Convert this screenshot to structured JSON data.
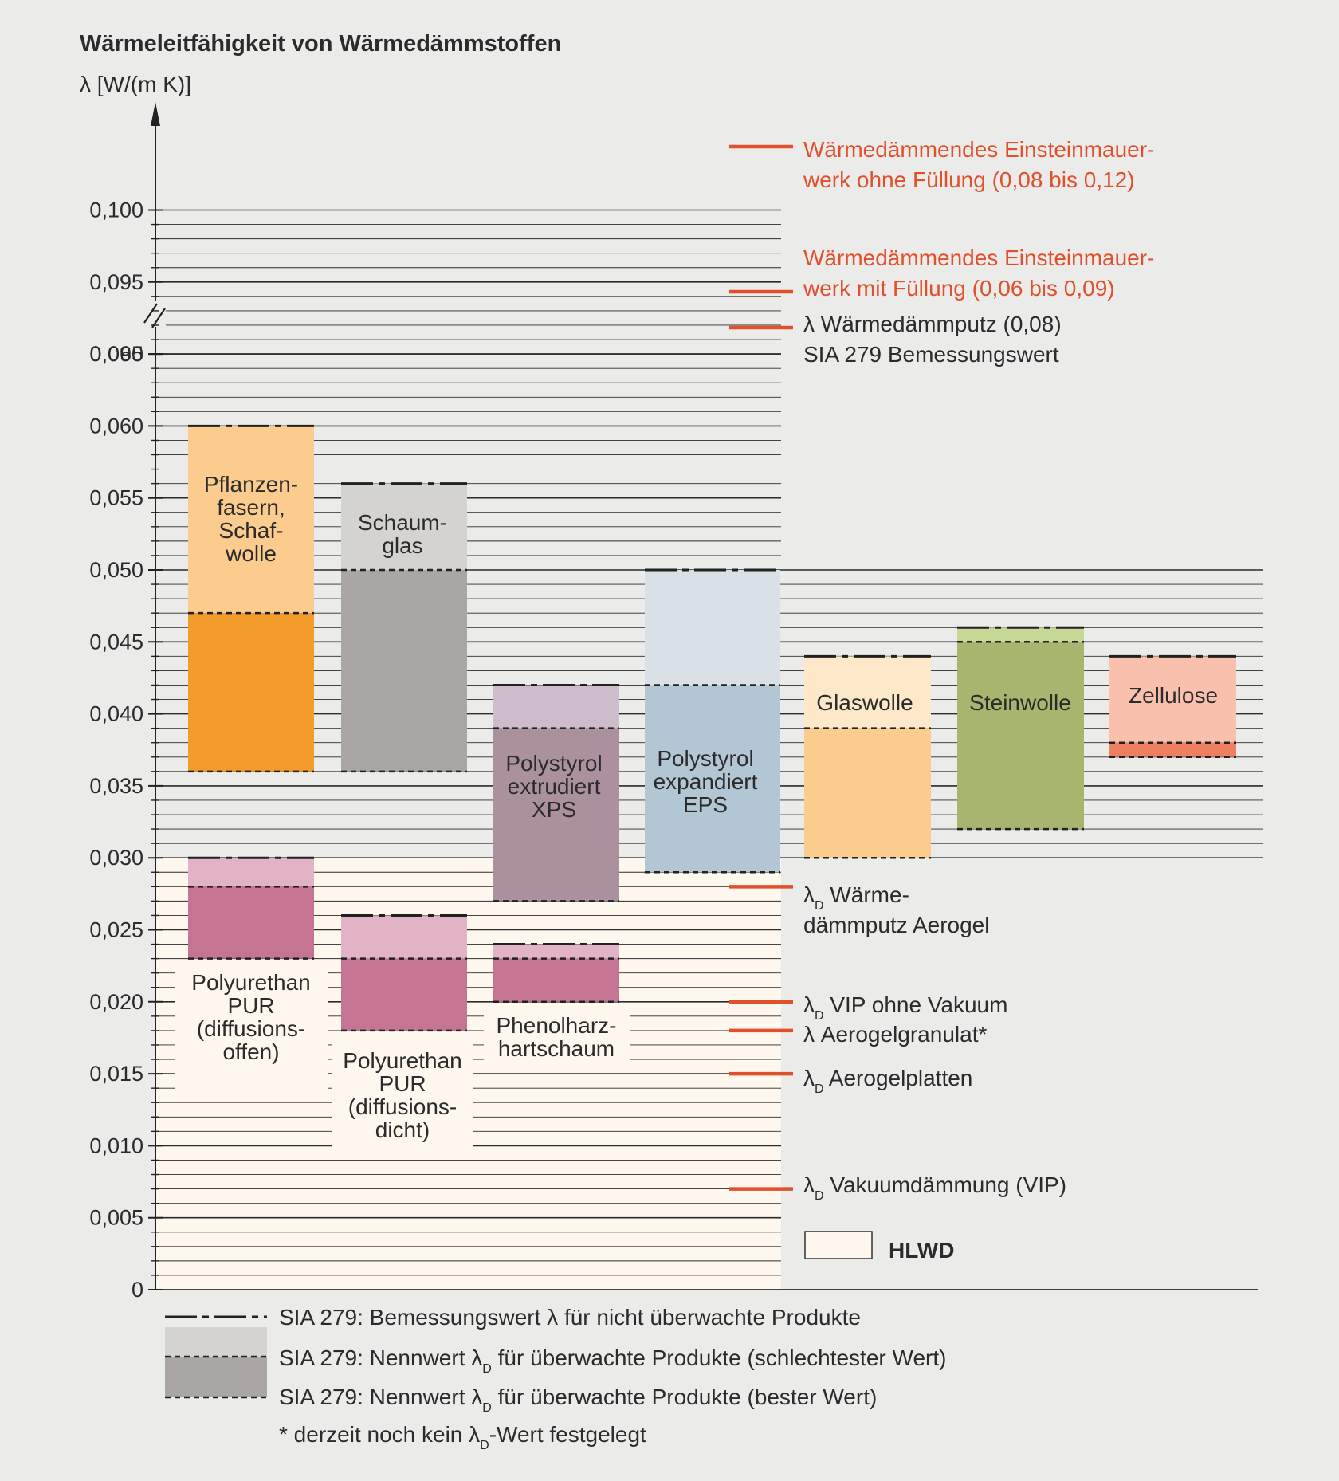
{
  "title": "Wärmeleitfähigkeit von Wärmedämmstoffen",
  "y_unit_symbol": "λ",
  "y_unit": " [W/(m K)]",
  "colors": {
    "background": "#ebebea",
    "hlwd_fill": "#fdf7ee",
    "marker": "#e0502c",
    "marker_text": "#e0502c",
    "grid": "#2b2b2b"
  },
  "chart_data": {
    "type": "floating-bar",
    "title": "Wärmeleitfähigkeit von Wärmedämmstoffen",
    "ylabel": "λ [W/(m K)]",
    "y_axis_break": [
      0.065,
      0.09
    ],
    "ylim": [
      0,
      0.1
    ],
    "grid": true,
    "y_ticks": [
      {
        "value": 0,
        "label": "0"
      },
      {
        "value": 0.005,
        "label": "0,005"
      },
      {
        "value": 0.01,
        "label": "0,010"
      },
      {
        "value": 0.015,
        "label": "0,015"
      },
      {
        "value": 0.02,
        "label": "0,020"
      },
      {
        "value": 0.025,
        "label": "0,025"
      },
      {
        "value": 0.03,
        "label": "0,030"
      },
      {
        "value": 0.035,
        "label": "0,035"
      },
      {
        "value": 0.04,
        "label": "0,040"
      },
      {
        "value": 0.045,
        "label": "0,045"
      },
      {
        "value": 0.05,
        "label": "0,050"
      },
      {
        "value": 0.055,
        "label": "0,055"
      },
      {
        "value": 0.06,
        "label": "0,060"
      },
      {
        "value": 0.065,
        "label": "0,065"
      },
      {
        "value": 0.09,
        "label": "0,090"
      },
      {
        "value": 0.095,
        "label": "0,095"
      },
      {
        "value": 0.1,
        "label": "0,100"
      }
    ],
    "hlwd_region": {
      "from": 0,
      "to": 0.03,
      "label": "HLWD"
    },
    "materials": [
      {
        "name": [
          "Pflanzen-",
          "fasern,",
          "Schaf-",
          "wolle"
        ],
        "design": 0.06,
        "nominal_worst": 0.047,
        "nominal_best": 0.036,
        "light": "#fbcc8d",
        "dark": "#f39c2b"
      },
      {
        "name": [
          "Schaum-",
          "glas"
        ],
        "design": 0.056,
        "nominal_worst": 0.05,
        "nominal_best": 0.036,
        "light": "#d4d3d1",
        "dark": "#a9a6a4"
      },
      {
        "name": [
          "Polystyrol",
          "extrudiert",
          "XPS"
        ],
        "design": 0.042,
        "nominal_worst": 0.039,
        "nominal_best": 0.027,
        "light": "#cdbcc9",
        "dark": "#ab919e"
      },
      {
        "name": [
          "Polystyrol",
          "expandiert",
          "EPS"
        ],
        "design": 0.05,
        "nominal_worst": 0.042,
        "nominal_best": 0.029,
        "light": "#d9e1e7",
        "dark": "#b2c6d3"
      },
      {
        "name": [
          "Glaswolle"
        ],
        "design": 0.044,
        "nominal_worst": 0.039,
        "nominal_best": 0.03,
        "light": "#fde8ca",
        "dark": "#fbcc8d"
      },
      {
        "name": [
          "Steinwolle"
        ],
        "design": 0.046,
        "nominal_worst": 0.045,
        "nominal_best": 0.032,
        "light": "#c7d795",
        "dark": "#a8b56e"
      },
      {
        "name": [
          "Zellulose"
        ],
        "design": 0.044,
        "nominal_worst": 0.038,
        "nominal_best": 0.037,
        "light": "#f9c1ad",
        "dark": "#ee7f61"
      },
      {
        "name": [
          "Polyurethan",
          "PUR",
          "(diffusions-",
          "offen)"
        ],
        "design": 0.03,
        "nominal_worst": 0.028,
        "nominal_best": 0.023,
        "light": "#e2b2c7",
        "dark": "#c67494"
      },
      {
        "name": [
          "Polyurethan",
          "PUR",
          "(diffusions-",
          "dicht)"
        ],
        "design": 0.026,
        "nominal_worst": 0.023,
        "nominal_best": 0.018,
        "light": "#e2b2c7",
        "dark": "#c67494"
      },
      {
        "name": [
          "Phenolharz-",
          "hartschaum"
        ],
        "design": 0.024,
        "nominal_worst": 0.023,
        "nominal_best": 0.02,
        "light": "#e2b2c7",
        "dark": "#c67494"
      }
    ],
    "reference_markers": [
      {
        "value": 0.1,
        "lines": [
          "Wärmedämmendes Einsteinmauer-",
          "werk ohne Füllung (0,08 bis 0,12)"
        ],
        "color": "red"
      },
      {
        "value": 0.09,
        "lines": [
          "Wärmedämmendes Einsteinmauer-",
          "werk mit Füllung (0,06 bis 0,09)"
        ],
        "color": "red"
      },
      {
        "value": 0.08,
        "lines": [
          "λ Wärmedämmputz (0,08)",
          "SIA 279 Bemessungswert"
        ],
        "color": "black"
      },
      {
        "value": 0.028,
        "lines": [
          "λD Wärme-",
          "dämmputz Aerogel"
        ],
        "color": "black"
      },
      {
        "value": 0.02,
        "lines": [
          "λD VIP ohne Vakuum"
        ],
        "color": "black"
      },
      {
        "value": 0.018,
        "lines": [
          "λ Aerogelgranulat*"
        ],
        "color": "black"
      },
      {
        "value": 0.015,
        "lines": [
          "λD Aerogelplatten"
        ],
        "color": "black"
      },
      {
        "value": 0.007,
        "lines": [
          "λD Vakuumdämmung (VIP)"
        ],
        "color": "black"
      }
    ],
    "legend": [
      {
        "kind": "dash-dot",
        "text": "SIA 279: Bemessungswert λ für nicht überwachte Produkte"
      },
      {
        "kind": "light",
        "text": "SIA 279: Nennwert λD für überwachte Produkte (schlechtester Wert)"
      },
      {
        "kind": "dark",
        "text": "SIA 279: Nennwert λD für überwachte Produkte (bester Wert)"
      },
      {
        "kind": "note",
        "text": "* derzeit noch kein λD-Wert festgelegt"
      }
    ]
  }
}
